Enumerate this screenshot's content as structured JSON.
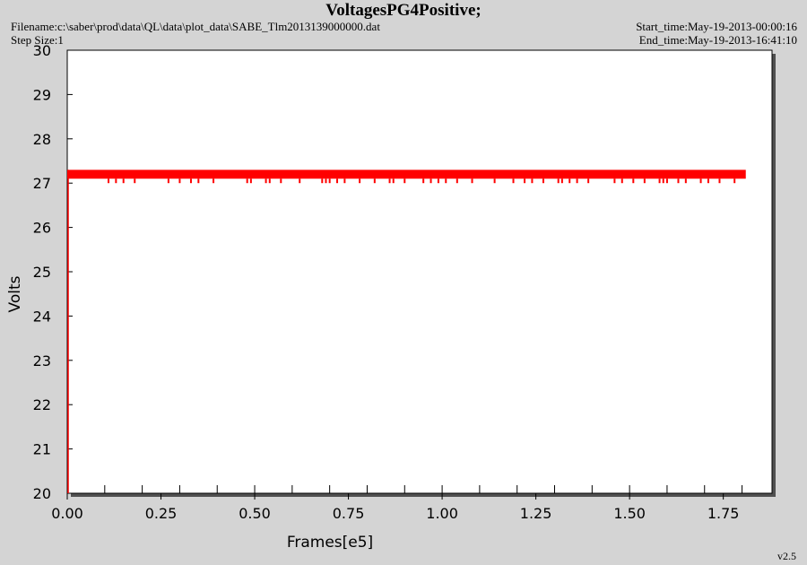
{
  "header": {
    "title": "VoltagesPG4Positive;",
    "filename": "Filename:c:\\saber\\prod\\data\\QL\\data\\plot_data\\SABE_Tlm2013139000000.dat",
    "step_size": "Step Size:1",
    "start_time": "Start_time:May-19-2013-00:00:16",
    "end_time": "End_time:May-19-2013-16:41:10"
  },
  "footer": {
    "version": "v2.5"
  },
  "colors": {
    "background": "#d4d4d4",
    "plot_area": "#ffffff",
    "series": "#ff0000"
  },
  "chart_data": {
    "type": "line",
    "title": "VoltagesPG4Positive;",
    "xlabel": "Frames[e5]",
    "ylabel": "Volts",
    "xlim": [
      0.0,
      1.9
    ],
    "ylim": [
      20,
      30
    ],
    "x_ticks": [
      "0.00",
      "0.25",
      "0.50",
      "0.75",
      "1.00",
      "1.25",
      "1.50",
      "1.75"
    ],
    "y_ticks": [
      "20",
      "21",
      "22",
      "23",
      "24",
      "25",
      "26",
      "27",
      "28",
      "29",
      "30"
    ],
    "grid": false,
    "series": [
      {
        "color": "#ff0000",
        "x_range": [
          0.0,
          1.81
        ],
        "base_value": 27.2,
        "band": [
          27.1,
          27.3
        ],
        "dips_to": 27.0,
        "dip_x": [
          0.11,
          0.13,
          0.15,
          0.18,
          0.27,
          0.3,
          0.33,
          0.35,
          0.39,
          0.48,
          0.49,
          0.53,
          0.54,
          0.57,
          0.62,
          0.68,
          0.69,
          0.7,
          0.72,
          0.74,
          0.78,
          0.82,
          0.86,
          0.87,
          0.9,
          0.95,
          0.97,
          0.99,
          1.01,
          1.04,
          1.08,
          1.14,
          1.19,
          1.22,
          1.24,
          1.27,
          1.31,
          1.32,
          1.34,
          1.36,
          1.39,
          1.46,
          1.48,
          1.51,
          1.54,
          1.58,
          1.59,
          1.6,
          1.63,
          1.65,
          1.69,
          1.71,
          1.74,
          1.78
        ]
      }
    ]
  }
}
